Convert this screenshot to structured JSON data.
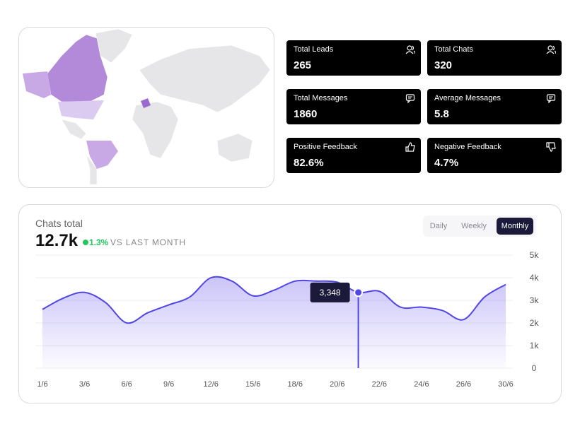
{
  "stats": [
    {
      "label": "Total Leads",
      "value": "265"
    },
    {
      "label": "Total Chats",
      "value": "320"
    },
    {
      "label": "Total Messages",
      "value": "1860"
    },
    {
      "label": "Average Messages",
      "value": "5.8"
    },
    {
      "label": "Positive Feedback",
      "value": "82.6%"
    },
    {
      "label": "Negative Feedback",
      "value": "4.7%"
    }
  ],
  "tabs": [
    "Daily",
    "Weekly",
    "Monthly"
  ],
  "chart_data": {
    "type": "area",
    "title": "Chats total",
    "total": "12.7k",
    "change": "1.3%",
    "change_caption": "VS LAST MONTH",
    "categories": [
      "1/6",
      null,
      "3/6",
      null,
      "6/6",
      null,
      "9/6",
      null,
      "12/6",
      null,
      "15/6",
      null,
      "18/6",
      null,
      "20/6",
      null,
      "22/6",
      null,
      "24/6",
      null,
      "26/6",
      null,
      "30/6"
    ],
    "values": [
      2600,
      3100,
      3350,
      2900,
      2000,
      2450,
      2800,
      3150,
      4000,
      3850,
      3200,
      3450,
      3850,
      3850,
      3800,
      3348,
      3400,
      2700,
      2700,
      2550,
      2150,
      3150,
      3700
    ],
    "value_labels": [
      null,
      null,
      null,
      null,
      null,
      null,
      null,
      null,
      null,
      null,
      null,
      null,
      null,
      null,
      null,
      "3,348",
      null,
      null,
      null,
      null,
      null,
      null,
      null
    ],
    "color": "#4f46e5",
    "ylim": [
      0,
      5000
    ],
    "yticks": [
      0,
      {
        "value": 1000,
        "label": "1k"
      },
      {
        "value": 2000,
        "label": "2k"
      },
      {
        "value": 3000,
        "label": "3k"
      },
      {
        "value": 4000,
        "label": "4k"
      },
      {
        "value": 5000,
        "label": "5k"
      }
    ],
    "grid": true
  }
}
